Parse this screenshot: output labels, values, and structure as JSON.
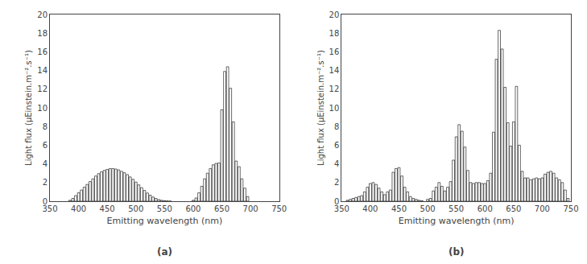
{
  "chart_data": [
    {
      "type": "bar",
      "title": "(a)",
      "xlabel": "Emitting wavelength (nm)",
      "ylabel": "Light flux (μEinstein.m⁻².s⁻¹)",
      "x": [
        385,
        390,
        395,
        400,
        405,
        410,
        415,
        420,
        425,
        430,
        435,
        440,
        445,
        450,
        455,
        460,
        465,
        470,
        475,
        480,
        485,
        490,
        495,
        500,
        505,
        510,
        515,
        520,
        525,
        530,
        535,
        540,
        545,
        550,
        555,
        560,
        600,
        605,
        610,
        615,
        620,
        625,
        630,
        635,
        640,
        645,
        650,
        655,
        660,
        665,
        670,
        675,
        680,
        685,
        690,
        695
      ],
      "values": [
        0.1,
        0.3,
        0.6,
        0.9,
        1.2,
        1.5,
        1.8,
        2.1,
        2.4,
        2.7,
        2.95,
        3.15,
        3.3,
        3.4,
        3.5,
        3.5,
        3.45,
        3.35,
        3.2,
        3.05,
        2.85,
        2.6,
        2.35,
        2.05,
        1.75,
        1.45,
        1.15,
        0.88,
        0.65,
        0.45,
        0.3,
        0.18,
        0.1,
        0.06,
        0.03,
        0.01,
        0.1,
        0.35,
        0.9,
        1.6,
        2.4,
        3.0,
        3.5,
        3.9,
        4.05,
        4.1,
        9.8,
        13.9,
        14.4,
        12.1,
        8.5,
        4.3,
        3.7,
        2.4,
        1.4,
        0.5
      ],
      "color": "white",
      "xlim": [
        350,
        750
      ],
      "xticks": [
        350,
        400,
        450,
        500,
        550,
        600,
        650,
        700,
        750
      ],
      "ylim": [
        0,
        20
      ],
      "yticks": [
        0,
        2,
        4,
        6,
        8,
        10,
        12,
        14,
        16,
        18,
        20
      ],
      "grid": false
    },
    {
      "type": "bar",
      "title": "(b)",
      "xlabel": "Emitting wavelength (nm)",
      "ylabel": "Light flux (μEinstein.m⁻².s⁻¹)",
      "x": [
        360,
        365,
        370,
        375,
        380,
        385,
        390,
        395,
        400,
        405,
        410,
        415,
        420,
        425,
        430,
        435,
        440,
        445,
        450,
        455,
        460,
        465,
        470,
        475,
        480,
        485,
        490,
        500,
        505,
        510,
        515,
        520,
        525,
        530,
        535,
        540,
        545,
        550,
        555,
        560,
        565,
        570,
        575,
        580,
        585,
        590,
        595,
        600,
        605,
        610,
        615,
        620,
        625,
        630,
        635,
        640,
        645,
        650,
        655,
        660,
        665,
        670,
        675,
        680,
        685,
        690,
        695,
        700,
        705,
        710,
        715,
        720,
        725,
        730,
        735,
        740,
        745
      ],
      "values": [
        0.1,
        0.2,
        0.3,
        0.4,
        0.5,
        0.6,
        1.0,
        1.5,
        1.9,
        2.0,
        1.8,
        1.4,
        1.0,
        0.7,
        1.0,
        1.2,
        3.1,
        3.5,
        3.6,
        2.7,
        1.5,
        1.0,
        0.5,
        0.3,
        0.2,
        0.1,
        0.05,
        0.2,
        0.3,
        1.1,
        1.5,
        2.0,
        1.6,
        1.1,
        1.5,
        2.1,
        4.4,
        6.9,
        8.2,
        7.5,
        5.8,
        3.3,
        2.0,
        1.9,
        2.0,
        2.0,
        1.9,
        1.9,
        2.2,
        3.0,
        7.4,
        15.2,
        18.3,
        16.3,
        12.2,
        8.4,
        5.9,
        8.5,
        12.3,
        6.0,
        3.2,
        2.5,
        2.5,
        2.3,
        2.4,
        2.5,
        2.4,
        2.5,
        2.9,
        3.1,
        3.2,
        3.0,
        2.5,
        2.3,
        2.0,
        1.2,
        0.3
      ],
      "color": "white",
      "xlim": [
        350,
        750
      ],
      "xticks": [
        350,
        400,
        450,
        500,
        550,
        600,
        650,
        700,
        750
      ],
      "ylim": [
        0,
        20
      ],
      "yticks": [
        0,
        2,
        4,
        6,
        8,
        10,
        12,
        14,
        16,
        18,
        20
      ],
      "grid": false
    }
  ]
}
